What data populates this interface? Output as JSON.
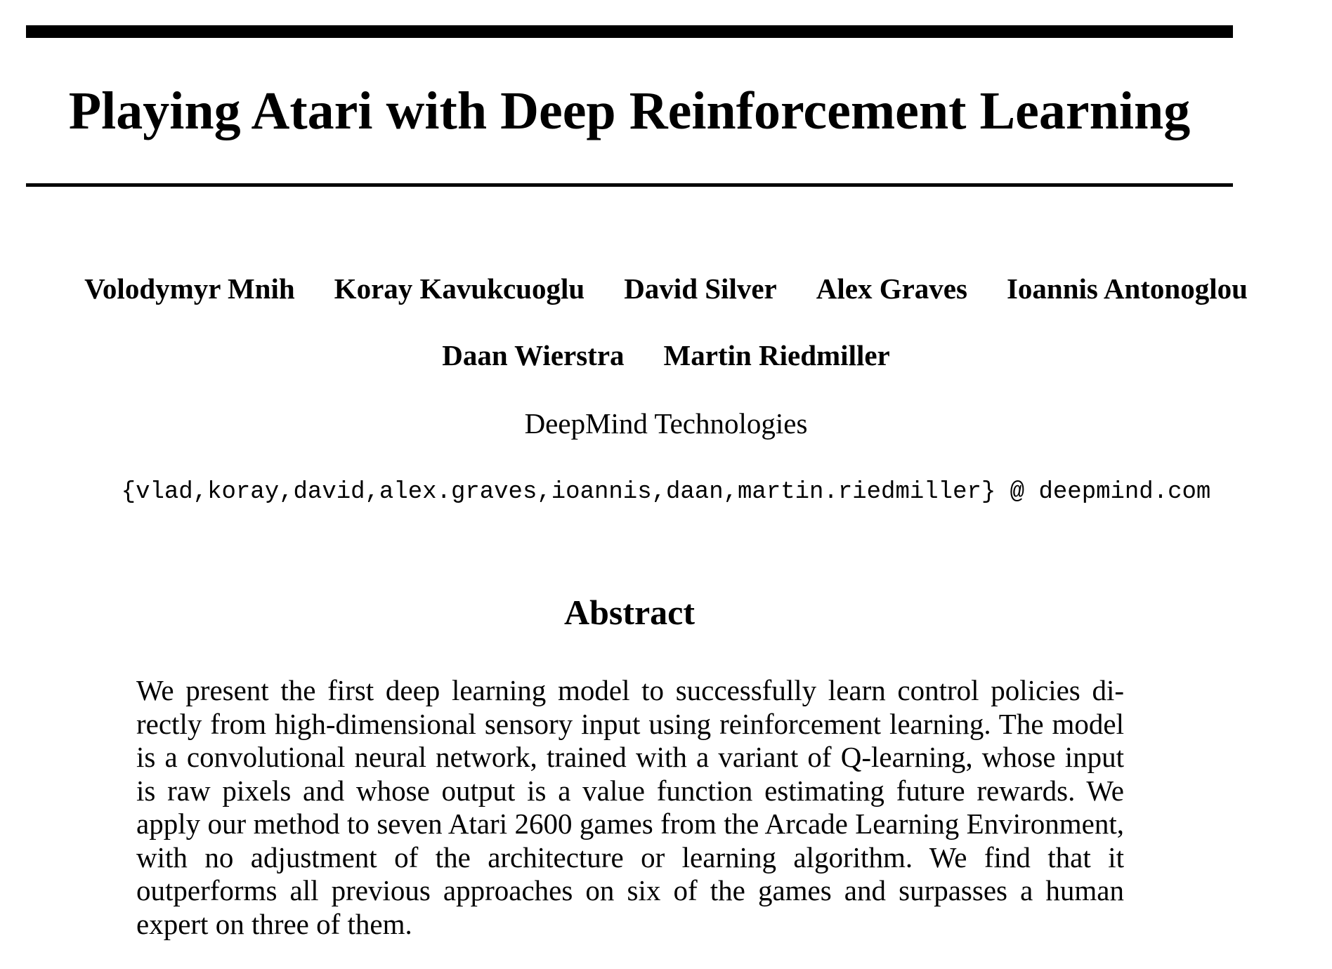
{
  "paper": {
    "title": "Playing Atari with Deep Reinforcement Learning",
    "authors_row1": [
      "Volodymyr Mnih",
      "Koray Kavukcuoglu",
      "David Silver",
      "Alex Graves",
      "Ioannis Antonoglou"
    ],
    "authors_row2": [
      "Daan Wierstra",
      "Martin Riedmiller"
    ],
    "affiliation": "DeepMind Technologies",
    "emails": "{vlad,koray,david,alex.graves,ioannis,daan,martin.riedmiller} @ deepmind.com",
    "abstract_heading": "Abstract",
    "abstract_text": "We present the first deep learning model to successfully learn control policies di­rectly from high-dimensional sensory input using reinforcement learning. The model is a convolutional neural network, trained with a variant of Q-learning, whose input is raw pixels and whose output is a value function estimating future rewards. We apply our method to seven Atari 2600 games from the Arcade Learn­ing Environment, with no adjustment of the architecture or learning algorithm. We find that it outperforms all previous approaches on six of the games and surpasses a human expert on three of them."
  }
}
